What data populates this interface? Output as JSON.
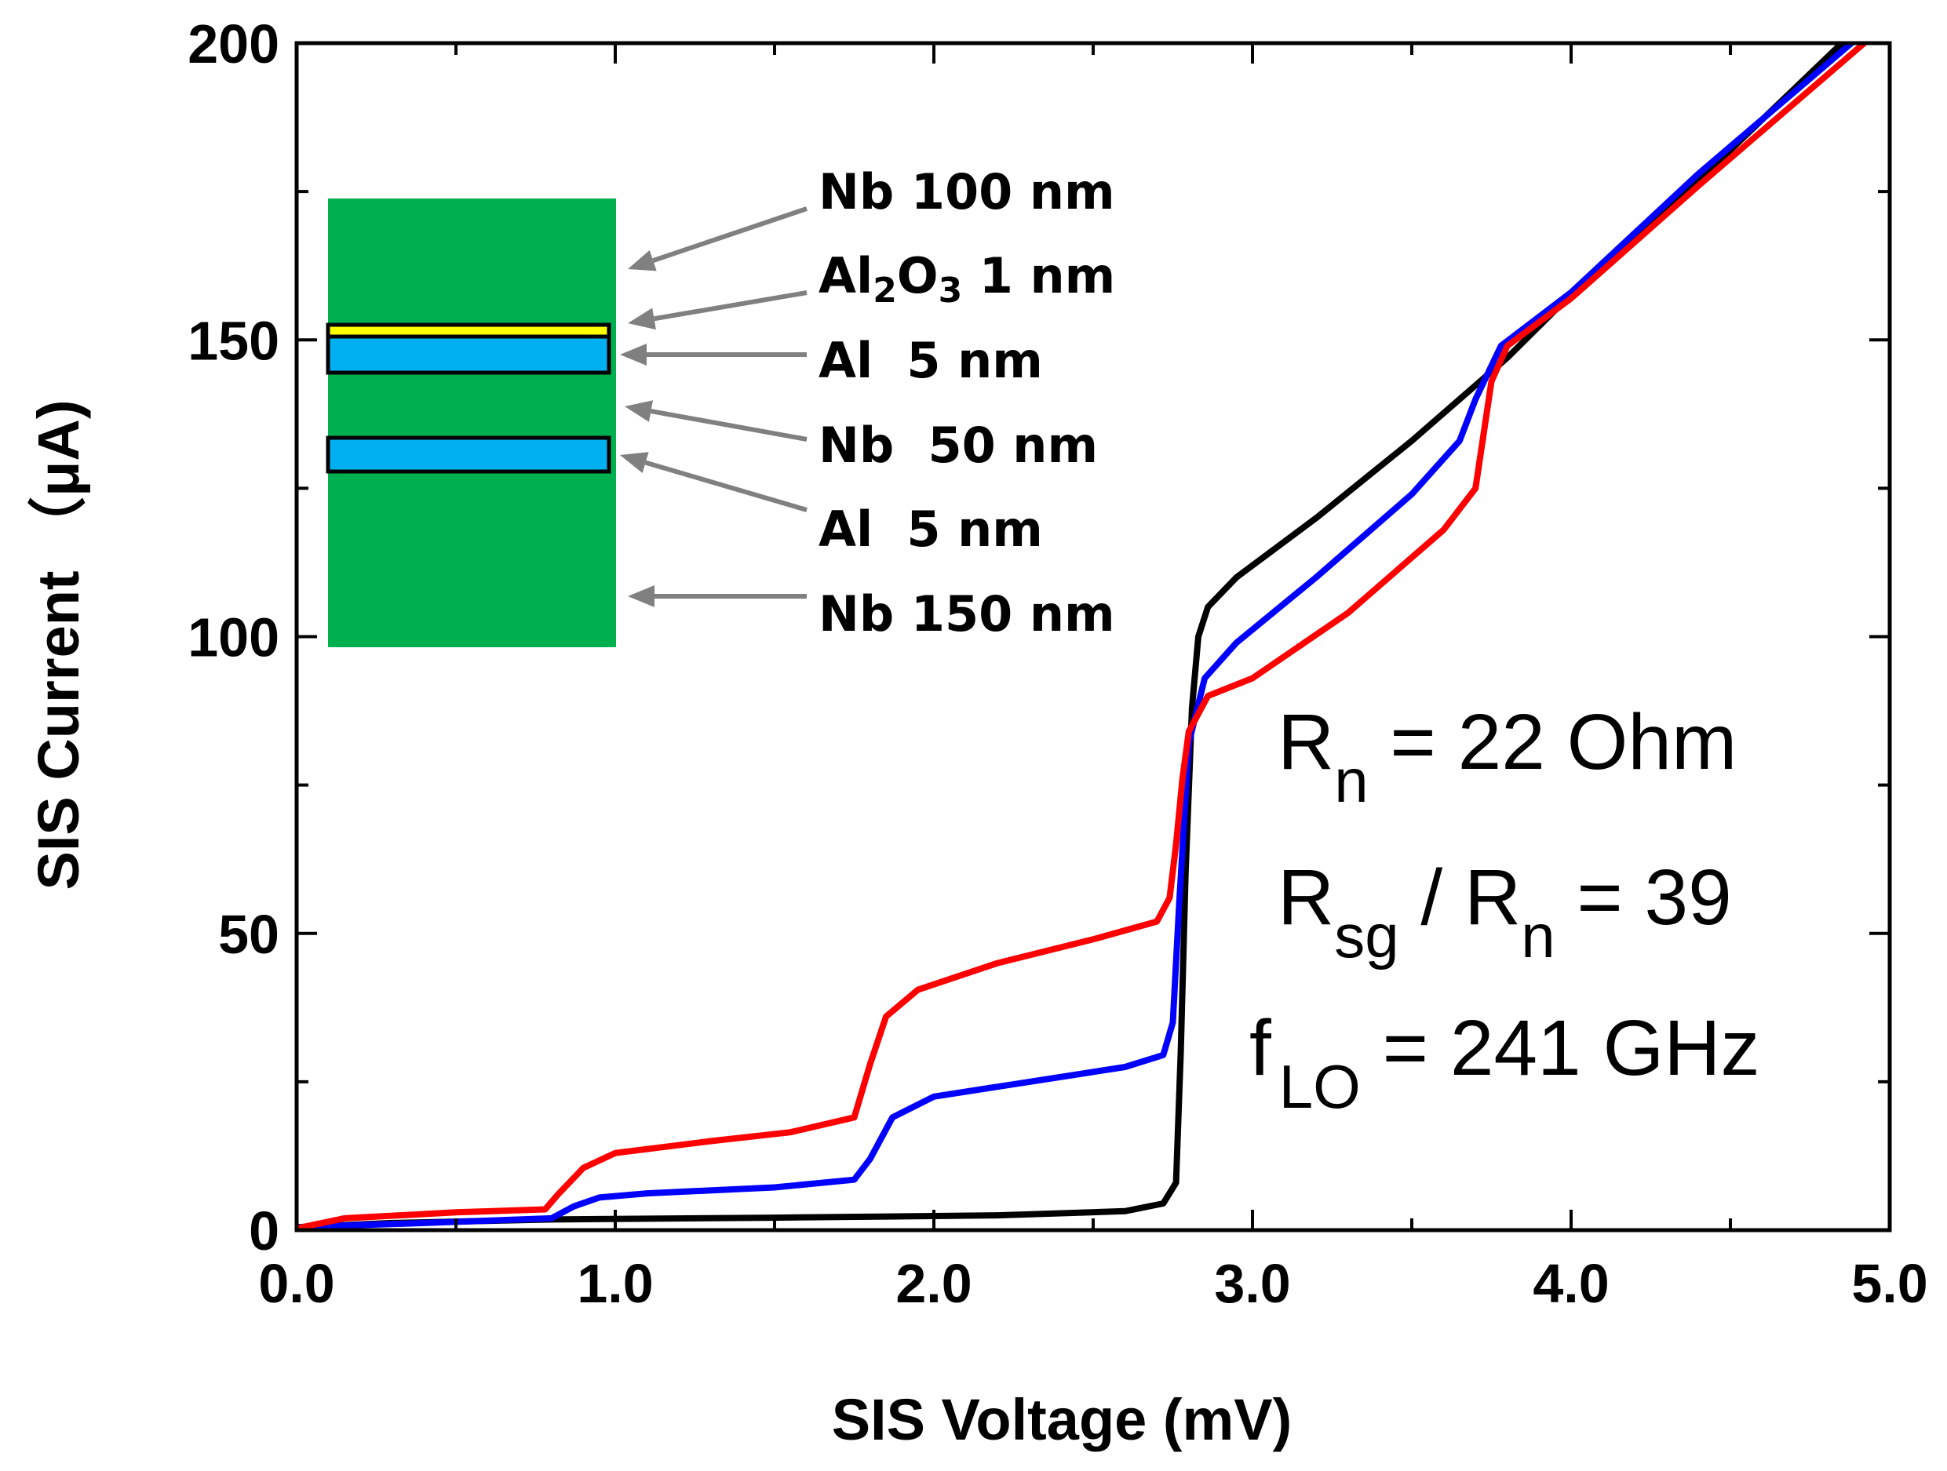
{
  "chart_data": {
    "type": "line",
    "xlabel": "SIS Voltage (mV)",
    "ylabel": "SIS Current （μA)",
    "xlim": [
      0,
      5.0
    ],
    "ylim": [
      0,
      200
    ],
    "x_ticks": [
      0,
      1,
      2,
      3,
      4,
      5
    ],
    "x_tick_labels": [
      "0.0",
      "1.0",
      "2.0",
      "3.0",
      "4.0",
      "5.0"
    ],
    "y_ticks": [
      0,
      50,
      100,
      150,
      200
    ],
    "y_tick_labels": [
      "0",
      "50",
      "100",
      "150",
      "200"
    ],
    "x_minor_step": 0.5,
    "y_minor_step": 25,
    "grid": false,
    "series": [
      {
        "color": "#000000",
        "points": [
          [
            0,
            0.5
          ],
          [
            0.3,
            1.2
          ],
          [
            0.8,
            1.8
          ],
          [
            1.5,
            2.1
          ],
          [
            2.2,
            2.5
          ],
          [
            2.6,
            3.2
          ],
          [
            2.72,
            4.5
          ],
          [
            2.76,
            8
          ],
          [
            2.775,
            30
          ],
          [
            2.79,
            60
          ],
          [
            2.81,
            88
          ],
          [
            2.83,
            100
          ],
          [
            2.86,
            105
          ],
          [
            2.95,
            110
          ],
          [
            3.2,
            120
          ],
          [
            3.5,
            133
          ],
          [
            3.8,
            147
          ],
          [
            4.1,
            163
          ],
          [
            4.5,
            182
          ],
          [
            4.85,
            200
          ]
        ]
      },
      {
        "color": "#0000ff",
        "points": [
          [
            0,
            0.5
          ],
          [
            0.4,
            1.2
          ],
          [
            0.8,
            2
          ],
          [
            0.87,
            4
          ],
          [
            0.95,
            5.5
          ],
          [
            1.1,
            6.2
          ],
          [
            1.5,
            7.2
          ],
          [
            1.75,
            8.5
          ],
          [
            1.8,
            12
          ],
          [
            1.87,
            19
          ],
          [
            2.0,
            22.5
          ],
          [
            2.3,
            25
          ],
          [
            2.6,
            27.5
          ],
          [
            2.72,
            29.5
          ],
          [
            2.75,
            35
          ],
          [
            2.77,
            55
          ],
          [
            2.8,
            82
          ],
          [
            2.85,
            93
          ],
          [
            2.95,
            99
          ],
          [
            3.2,
            110
          ],
          [
            3.5,
            124
          ],
          [
            3.65,
            133
          ],
          [
            3.7,
            140
          ],
          [
            3.78,
            149
          ],
          [
            4.0,
            158
          ],
          [
            4.4,
            178
          ],
          [
            4.88,
            200
          ]
        ]
      },
      {
        "color": "#ff0000",
        "points": [
          [
            0,
            0.3
          ],
          [
            0.15,
            2
          ],
          [
            0.5,
            3
          ],
          [
            0.78,
            3.5
          ],
          [
            0.82,
            6
          ],
          [
            0.9,
            10.5
          ],
          [
            1.0,
            13
          ],
          [
            1.3,
            15
          ],
          [
            1.55,
            16.5
          ],
          [
            1.75,
            19
          ],
          [
            1.8,
            28
          ],
          [
            1.85,
            36
          ],
          [
            1.95,
            40.5
          ],
          [
            2.2,
            45
          ],
          [
            2.5,
            49
          ],
          [
            2.7,
            52
          ],
          [
            2.74,
            56
          ],
          [
            2.76,
            65
          ],
          [
            2.78,
            76
          ],
          [
            2.8,
            84
          ],
          [
            2.86,
            90
          ],
          [
            3.0,
            93
          ],
          [
            3.3,
            104
          ],
          [
            3.6,
            118
          ],
          [
            3.7,
            125
          ],
          [
            3.75,
            143
          ],
          [
            3.8,
            149
          ],
          [
            4.0,
            157
          ],
          [
            4.4,
            176
          ],
          [
            4.92,
            200
          ]
        ]
      }
    ],
    "inset": {
      "layers": [
        {
          "label": "Nb 100 nm",
          "color": "#00b050"
        },
        {
          "label": "Al2O3 1 nm",
          "color": "#ffff00"
        },
        {
          "label": "Al  5 nm",
          "color": "#00b0f0"
        },
        {
          "label": "Nb  50 nm",
          "color": "#00b050"
        },
        {
          "label": "Al  5 nm",
          "color": "#00b0f0"
        },
        {
          "label": "Nb 150 nm",
          "color": "#00b050"
        }
      ],
      "arrow_color": "#808080"
    },
    "annotations": {
      "rn": {
        "main": "R",
        "sub": "n",
        "rest": " = 22 Ohm"
      },
      "ratio": {
        "main": "R",
        "sub": "sg",
        "mid": " / R",
        "sub2": "n",
        "rest": " = 39"
      },
      "flo": {
        "main": "f",
        "sub": "LO",
        "rest": " = 241 GHz"
      }
    }
  }
}
